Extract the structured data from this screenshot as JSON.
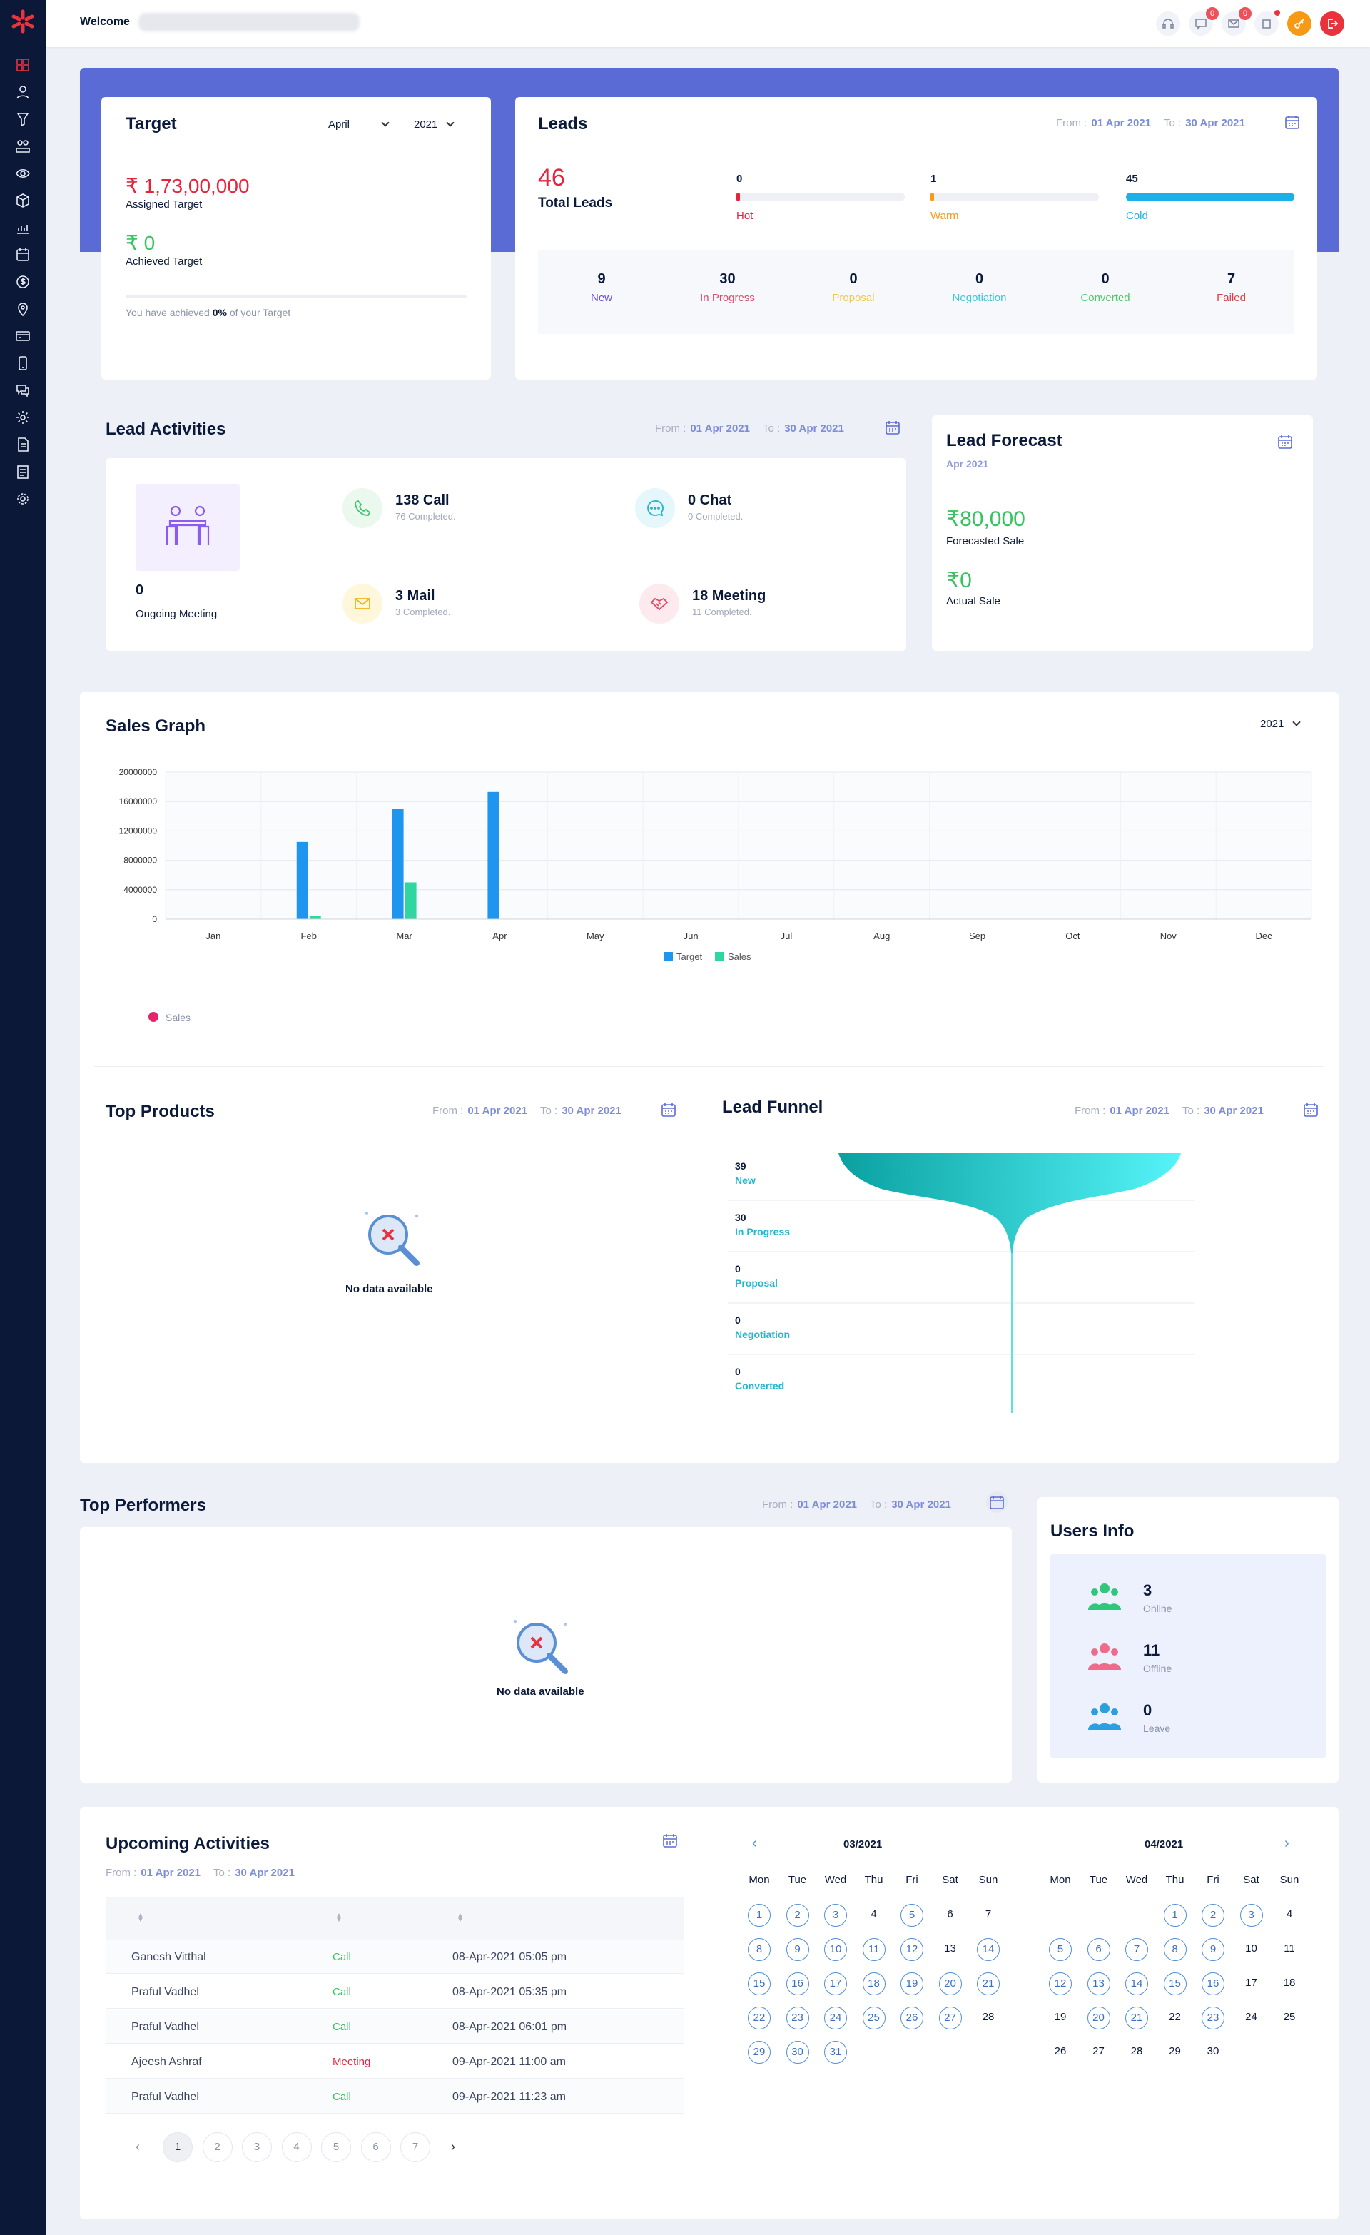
{
  "header": {
    "welcome": "Welcome",
    "badges": {
      "messages": "0",
      "mail": "0"
    }
  },
  "target": {
    "title": "Target",
    "month": "April",
    "year": "2021",
    "assigned_value": "₹ 1,73,00,000",
    "assigned_label": "Assigned Target",
    "achieved_value": "₹ 0",
    "achieved_label": "Achieved Target",
    "progress_pre": "You have achieved",
    "progress_pct": "0%",
    "progress_post": "of your Target",
    "progress_fraction": 0
  },
  "leads": {
    "title": "Leads",
    "from_label": "From :",
    "from": "01 Apr 2021",
    "to_label": "To :",
    "to": "30 Apr 2021",
    "total": "46",
    "total_label": "Total Leads",
    "temps": [
      {
        "value": "0",
        "label": "Hot",
        "color": "#e5243b",
        "fraction": 0
      },
      {
        "value": "1",
        "label": "Warm",
        "color": "#f79a1c",
        "fraction": 0.02
      },
      {
        "value": "45",
        "label": "Cold",
        "color": "#1cb0e8",
        "fraction": 1
      }
    ],
    "stages": [
      {
        "value": "9",
        "label": "New",
        "color": "#6a4bdb"
      },
      {
        "value": "30",
        "label": "In Progress",
        "color": "#e24a6c"
      },
      {
        "value": "0",
        "label": "Proposal",
        "color": "#f2c94c"
      },
      {
        "value": "0",
        "label": "Negotiation",
        "color": "#3bc8d8"
      },
      {
        "value": "0",
        "label": "Converted",
        "color": "#4cc76d"
      },
      {
        "value": "7",
        "label": "Failed",
        "color": "#e23b4b"
      }
    ]
  },
  "lead_activities": {
    "title": "Lead Activities",
    "from_label": "From :",
    "from": "01 Apr 2021",
    "to_label": "To :",
    "to": "30 Apr 2021",
    "ongoing_value": "0",
    "ongoing_label": "Ongoing Meeting",
    "items": [
      {
        "title": "138 Call",
        "sub": "76 Completed."
      },
      {
        "title": "0 Chat",
        "sub": "0 Completed."
      },
      {
        "title": "3 Mail",
        "sub": "3 Completed."
      },
      {
        "title": "18 Meeting",
        "sub": "11 Completed."
      }
    ]
  },
  "lead_forecast": {
    "title": "Lead Forecast",
    "month": "Apr 2021",
    "forecast_value": "₹80,000",
    "forecast_label": "Forecasted Sale",
    "actual_value": "₹0",
    "actual_label": "Actual Sale"
  },
  "sales_graph": {
    "title": "Sales Graph",
    "year": "2021",
    "extra_legend": "Sales"
  },
  "chart_data": {
    "type": "bar",
    "title": "",
    "categories": [
      "Jan",
      "Feb",
      "Mar",
      "Apr",
      "May",
      "Jun",
      "Jul",
      "Aug",
      "Sep",
      "Oct",
      "Nov",
      "Dec"
    ],
    "series": [
      {
        "name": "Target",
        "color": "#1e96f0",
        "values": [
          0,
          10500000,
          15000000,
          17300000,
          0,
          0,
          0,
          0,
          0,
          0,
          0,
          0
        ]
      },
      {
        "name": "Sales",
        "color": "#2fd6a0",
        "values": [
          0,
          400000,
          5000000,
          0,
          0,
          0,
          0,
          0,
          0,
          0,
          0,
          0
        ]
      }
    ],
    "yticks": [
      "0",
      "4000000",
      "8000000",
      "12000000",
      "16000000",
      "20000000"
    ],
    "ylim": [
      0,
      20000000
    ],
    "legend": "bottom",
    "grid": true
  },
  "top_products": {
    "title": "Top Products",
    "from_label": "From :",
    "from": "01 Apr 2021",
    "to_label": "To :",
    "to": "30 Apr 2021",
    "empty": "No data available"
  },
  "lead_funnel": {
    "title": "Lead Funnel",
    "from_label": "From :",
    "from": "01 Apr 2021",
    "to_label": "To :",
    "to": "30 Apr 2021",
    "stages": [
      {
        "value": "39",
        "label": "New"
      },
      {
        "value": "30",
        "label": "In Progress"
      },
      {
        "value": "0",
        "label": "Proposal"
      },
      {
        "value": "0",
        "label": "Negotiation"
      },
      {
        "value": "0",
        "label": "Converted"
      }
    ]
  },
  "top_performers": {
    "title": "Top Performers",
    "from_label": "From :",
    "from": "01 Apr 2021",
    "to_label": "To :",
    "to": "30 Apr 2021",
    "empty": "No data available"
  },
  "users_info": {
    "title": "Users Info",
    "items": [
      {
        "value": "3",
        "label": "Online",
        "color": "#2fc77a"
      },
      {
        "value": "11",
        "label": "Offline",
        "color": "#ef6b8a"
      },
      {
        "value": "0",
        "label": "Leave",
        "color": "#2b9fe0"
      }
    ]
  },
  "upcoming": {
    "title": "Upcoming Activities",
    "from_label": "From :",
    "from": "01 Apr 2021",
    "to_label": "To :",
    "to": "30 Apr 2021",
    "rows": [
      {
        "name": "Ganesh Vitthal",
        "type": "Call",
        "time": "08-Apr-2021 05:05 pm"
      },
      {
        "name": "Praful Vadhel",
        "type": "Call",
        "time": "08-Apr-2021 05:35 pm"
      },
      {
        "name": "Praful Vadhel",
        "type": "Call",
        "time": "08-Apr-2021 06:01 pm"
      },
      {
        "name": "Ajeesh Ashraf",
        "type": "Meeting",
        "time": "09-Apr-2021 11:00 am"
      },
      {
        "name": "Praful Vadhel",
        "type": "Call",
        "time": "09-Apr-2021 11:23 am"
      }
    ],
    "pages": [
      "1",
      "2",
      "3",
      "4",
      "5",
      "6",
      "7"
    ]
  },
  "calendar": {
    "weekdays": [
      "Mon",
      "Tue",
      "Wed",
      "Thu",
      "Fri",
      "Sat",
      "Sun"
    ],
    "months": [
      {
        "label": "03/2021",
        "offset": 0,
        "days": 31,
        "marked": [
          1,
          2,
          3,
          5,
          8,
          9,
          10,
          11,
          12,
          14,
          15,
          16,
          17,
          18,
          19,
          20,
          21,
          22,
          23,
          24,
          25,
          26,
          27,
          29,
          30,
          31
        ]
      },
      {
        "label": "04/2021",
        "offset": 3,
        "days": 30,
        "marked": [
          1,
          2,
          3,
          5,
          6,
          7,
          8,
          9,
          12,
          13,
          14,
          15,
          16,
          20,
          21,
          23
        ]
      }
    ]
  }
}
